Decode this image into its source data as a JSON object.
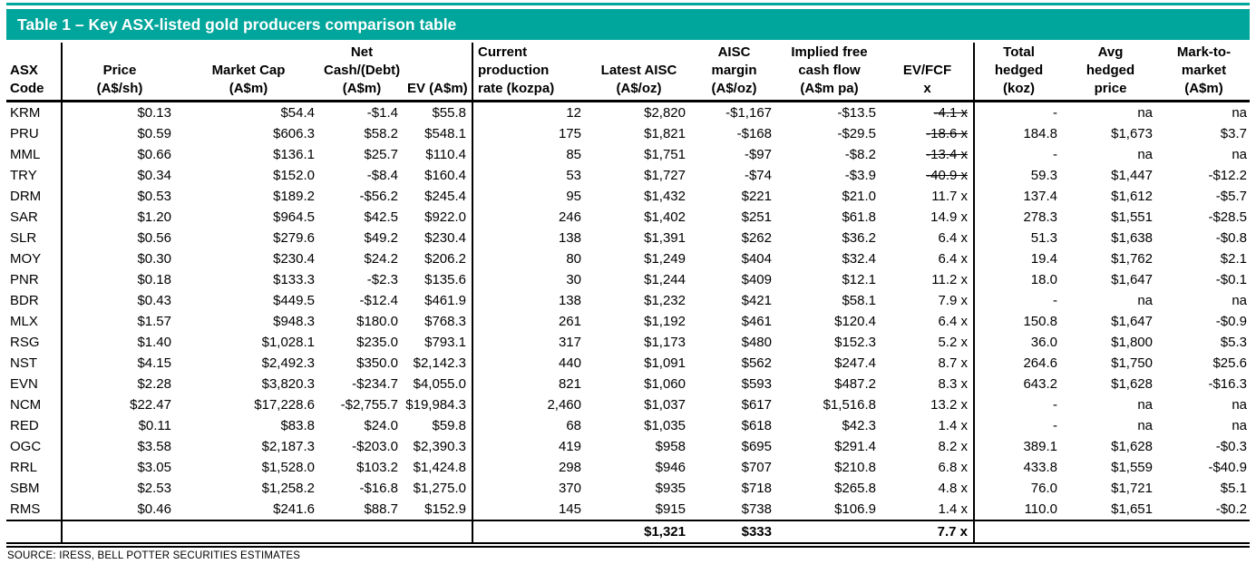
{
  "colors": {
    "accent_teal": "#00A59B"
  },
  "title_bar": {
    "title": "Table 1 – Key ASX-listed gold producers comparison table"
  },
  "table": {
    "column_headers": [
      {
        "lines": [
          "",
          "ASX",
          "Code"
        ]
      },
      {
        "lines": [
          "",
          "Price",
          "(A$/sh)"
        ]
      },
      {
        "lines": [
          "",
          "Market Cap",
          "(A$m)"
        ]
      },
      {
        "lines": [
          "Net",
          "Cash/(Debt)",
          "(A$m)"
        ]
      },
      {
        "lines": [
          "",
          "",
          "EV (A$m)"
        ]
      },
      {
        "lines": [
          "Current",
          "production",
          "rate (kozpa)"
        ]
      },
      {
        "lines": [
          "",
          "Latest AISC",
          "(A$/oz)"
        ]
      },
      {
        "lines": [
          "AISC",
          "margin",
          "(A$/oz)"
        ]
      },
      {
        "lines": [
          "Implied free",
          "cash flow",
          "(A$m pa)"
        ]
      },
      {
        "lines": [
          "",
          "EV/FCF",
          "x"
        ]
      },
      {
        "lines": [
          "Total",
          "hedged",
          "(koz)"
        ]
      },
      {
        "lines": [
          "Avg",
          "hedged",
          "price"
        ]
      },
      {
        "lines": [
          "Mark-to-",
          "market",
          "(A$m)"
        ]
      }
    ],
    "rows": [
      {
        "cells": [
          "KRM",
          "$0.13",
          "$54.4",
          "-$1.4",
          "$55.8",
          "12",
          "$2,820",
          "-$1,167",
          "-$13.5",
          "-4.1 x",
          "-",
          "na",
          "na"
        ],
        "strike_cols": [
          9
        ]
      },
      {
        "cells": [
          "PRU",
          "$0.59",
          "$606.3",
          "$58.2",
          "$548.1",
          "175",
          "$1,821",
          "-$168",
          "-$29.5",
          "-18.6 x",
          "184.8",
          "$1,673",
          "$3.7"
        ],
        "strike_cols": [
          9
        ]
      },
      {
        "cells": [
          "MML",
          "$0.66",
          "$136.1",
          "$25.7",
          "$110.4",
          "85",
          "$1,751",
          "-$97",
          "-$8.2",
          "-13.4 x",
          "-",
          "na",
          "na"
        ],
        "strike_cols": [
          9
        ]
      },
      {
        "cells": [
          "TRY",
          "$0.34",
          "$152.0",
          "-$8.4",
          "$160.4",
          "53",
          "$1,727",
          "-$74",
          "-$3.9",
          "-40.9 x",
          "59.3",
          "$1,447",
          "-$12.2"
        ],
        "strike_cols": [
          9
        ]
      },
      {
        "cells": [
          "DRM",
          "$0.53",
          "$189.2",
          "-$56.2",
          "$245.4",
          "95",
          "$1,432",
          "$221",
          "$21.0",
          "11.7 x",
          "137.4",
          "$1,612",
          "-$5.7"
        ],
        "strike_cols": []
      },
      {
        "cells": [
          "SAR",
          "$1.20",
          "$964.5",
          "$42.5",
          "$922.0",
          "246",
          "$1,402",
          "$251",
          "$61.8",
          "14.9 x",
          "278.3",
          "$1,551",
          "-$28.5"
        ],
        "strike_cols": []
      },
      {
        "cells": [
          "SLR",
          "$0.56",
          "$279.6",
          "$49.2",
          "$230.4",
          "138",
          "$1,391",
          "$262",
          "$36.2",
          "6.4 x",
          "51.3",
          "$1,638",
          "-$0.8"
        ],
        "strike_cols": []
      },
      {
        "cells": [
          "MOY",
          "$0.30",
          "$230.4",
          "$24.2",
          "$206.2",
          "80",
          "$1,249",
          "$404",
          "$32.4",
          "6.4 x",
          "19.4",
          "$1,762",
          "$2.1"
        ],
        "strike_cols": []
      },
      {
        "cells": [
          "PNR",
          "$0.18",
          "$133.3",
          "-$2.3",
          "$135.6",
          "30",
          "$1,244",
          "$409",
          "$12.1",
          "11.2 x",
          "18.0",
          "$1,647",
          "-$0.1"
        ],
        "strike_cols": []
      },
      {
        "cells": [
          "BDR",
          "$0.43",
          "$449.5",
          "-$12.4",
          "$461.9",
          "138",
          "$1,232",
          "$421",
          "$58.1",
          "7.9 x",
          "-",
          "na",
          "na"
        ],
        "strike_cols": []
      },
      {
        "cells": [
          "MLX",
          "$1.57",
          "$948.3",
          "$180.0",
          "$768.3",
          "261",
          "$1,192",
          "$461",
          "$120.4",
          "6.4 x",
          "150.8",
          "$1,647",
          "-$0.9"
        ],
        "strike_cols": []
      },
      {
        "cells": [
          "RSG",
          "$1.40",
          "$1,028.1",
          "$235.0",
          "$793.1",
          "317",
          "$1,173",
          "$480",
          "$152.3",
          "5.2 x",
          "36.0",
          "$1,800",
          "$5.3"
        ],
        "strike_cols": []
      },
      {
        "cells": [
          "NST",
          "$4.15",
          "$2,492.3",
          "$350.0",
          "$2,142.3",
          "440",
          "$1,091",
          "$562",
          "$247.4",
          "8.7 x",
          "264.6",
          "$1,750",
          "$25.6"
        ],
        "strike_cols": []
      },
      {
        "cells": [
          "EVN",
          "$2.28",
          "$3,820.3",
          "-$234.7",
          "$4,055.0",
          "821",
          "$1,060",
          "$593",
          "$487.2",
          "8.3 x",
          "643.2",
          "$1,628",
          "-$16.3"
        ],
        "strike_cols": []
      },
      {
        "cells": [
          "NCM",
          "$22.47",
          "$17,228.6",
          "-$2,755.7",
          "$19,984.3",
          "2,460",
          "$1,037",
          "$617",
          "$1,516.8",
          "13.2 x",
          "-",
          "na",
          "na"
        ],
        "strike_cols": []
      },
      {
        "cells": [
          "RED",
          "$0.11",
          "$83.8",
          "$24.0",
          "$59.8",
          "68",
          "$1,035",
          "$618",
          "$42.3",
          "1.4 x",
          "-",
          "na",
          "na"
        ],
        "strike_cols": []
      },
      {
        "cells": [
          "OGC",
          "$3.58",
          "$2,187.3",
          "-$203.0",
          "$2,390.3",
          "419",
          "$958",
          "$695",
          "$291.4",
          "8.2 x",
          "389.1",
          "$1,628",
          "-$0.3"
        ],
        "strike_cols": []
      },
      {
        "cells": [
          "RRL",
          "$3.05",
          "$1,528.0",
          "$103.2",
          "$1,424.8",
          "298",
          "$946",
          "$707",
          "$210.8",
          "6.8 x",
          "433.8",
          "$1,559",
          "-$40.9"
        ],
        "strike_cols": []
      },
      {
        "cells": [
          "SBM",
          "$2.53",
          "$1,258.2",
          "-$16.8",
          "$1,275.0",
          "370",
          "$935",
          "$718",
          "$265.8",
          "4.8 x",
          "76.0",
          "$1,721",
          "$5.1"
        ],
        "strike_cols": []
      },
      {
        "cells": [
          "RMS",
          "$0.46",
          "$241.6",
          "$88.7",
          "$152.9",
          "145",
          "$915",
          "$738",
          "$106.9",
          "1.4 x",
          "110.0",
          "$1,651",
          "-$0.2"
        ],
        "strike_cols": []
      }
    ],
    "total_row": [
      "",
      "",
      "",
      "",
      "",
      "",
      "$1,321",
      "$333",
      "",
      "7.7 x",
      "",
      "",
      ""
    ],
    "source": "SOURCE: IRESS, BELL POTTER SECURITIES ESTIMATES"
  }
}
